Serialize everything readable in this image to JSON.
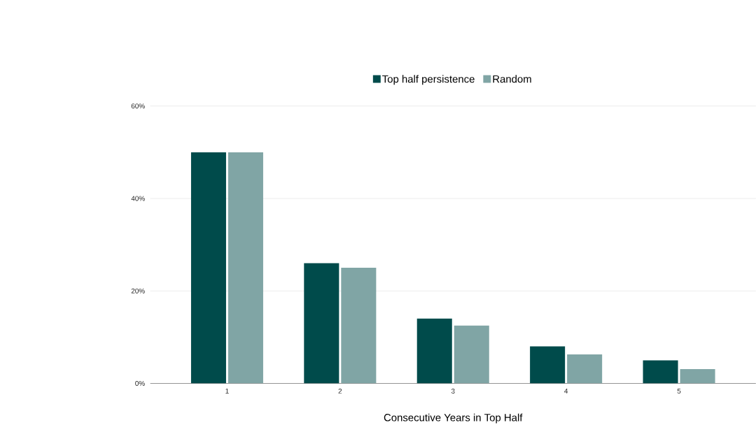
{
  "chart_data": {
    "type": "bar",
    "xlabel": "Consecutive Years in Top Half",
    "categories": [
      "1",
      "2",
      "3",
      "4",
      "5"
    ],
    "series": [
      {
        "name": "Top half persistence",
        "color": "#004b4b",
        "values": [
          50,
          26,
          14,
          8,
          5
        ]
      },
      {
        "name": "Random",
        "color": "#80a5a5",
        "values": [
          50,
          25,
          12.5,
          6.25,
          3.1
        ]
      }
    ],
    "ylim": [
      0,
      60
    ],
    "yticks": [
      {
        "value": 0,
        "label": "0%"
      },
      {
        "value": 20,
        "label": "20%"
      },
      {
        "value": 40,
        "label": "40%"
      },
      {
        "value": 60,
        "label": "60%"
      }
    ],
    "grid": "y",
    "legend": "top"
  }
}
